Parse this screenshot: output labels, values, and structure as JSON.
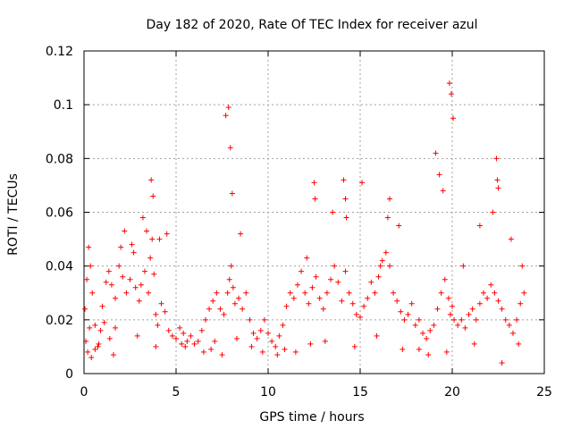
{
  "chart_data": {
    "type": "scatter",
    "title": "Day 182 of 2020, Rate Of TEC Index for receiver azul",
    "xlabel": "GPS time / hours",
    "ylabel": "ROTI / TECUs",
    "xlim": [
      0,
      25
    ],
    "ylim": [
      0,
      0.12
    ],
    "x_ticks": [
      0,
      5,
      10,
      15,
      20,
      25
    ],
    "x_tick_labels": [
      "0",
      "5",
      "10",
      "15",
      "20",
      "25"
    ],
    "y_ticks": [
      0,
      0.02,
      0.04,
      0.06,
      0.08,
      0.1,
      0.12
    ],
    "y_tick_labels": [
      "0",
      "0.02",
      "0.04",
      "0.06",
      "0.08",
      "0.1",
      "0.12"
    ],
    "grid": true,
    "marker": "+",
    "color": "#ff0000",
    "series": [
      {
        "x": [
          0.05,
          0.15,
          0.25,
          0.35,
          0.45,
          0.6,
          0.75,
          0.9,
          1.0,
          1.2,
          1.35,
          1.5,
          1.7,
          1.9,
          2.0,
          2.1,
          2.3,
          2.5,
          2.7,
          2.8,
          3.0,
          3.1,
          3.3,
          3.5,
          3.6,
          3.7,
          3.8,
          3.9,
          4.0,
          4.2,
          4.4,
          4.6,
          4.8,
          5.0,
          5.2,
          5.4,
          5.6,
          5.8,
          6.0,
          6.2,
          6.4,
          6.6,
          6.8,
          7.0,
          7.2,
          7.4,
          7.6,
          7.8,
          7.9,
          8.0,
          8.1,
          8.2,
          8.4,
          8.6,
          8.8,
          9.0,
          9.2,
          9.4,
          9.6,
          9.8,
          10.0,
          10.2,
          10.4,
          10.6,
          10.8,
          11.0,
          11.2,
          11.4,
          11.6,
          11.8,
          12.0,
          12.2,
          12.4,
          12.6,
          12.8,
          13.0,
          13.2,
          13.4,
          13.6,
          13.8,
          14.0,
          14.2,
          14.4,
          14.6,
          14.8,
          15.0,
          15.2,
          15.4,
          15.6,
          15.8,
          16.0,
          16.2,
          16.4,
          16.6,
          16.8,
          17.0,
          17.2,
          17.4,
          17.6,
          17.8,
          18.0,
          18.2,
          18.4,
          18.6,
          18.8,
          19.0,
          19.2,
          19.4,
          19.6,
          19.8,
          19.9,
          20.0,
          20.1,
          20.3,
          20.5,
          20.7,
          20.9,
          21.1,
          21.3,
          21.5,
          21.7,
          21.9,
          22.1,
          22.3,
          22.5,
          22.7,
          22.9,
          23.1,
          23.3,
          23.5,
          23.7,
          23.9,
          0.1,
          0.2,
          0.4,
          0.6,
          0.8,
          1.1,
          1.4,
          1.7,
          2.2,
          2.6,
          3.2,
          3.4,
          3.65,
          3.75,
          4.1,
          4.5,
          5.5,
          6.5,
          7.1,
          7.5,
          7.7,
          7.85,
          7.95,
          8.05,
          8.5,
          9.1,
          10.5,
          11.5,
          12.1,
          12.5,
          12.55,
          13.5,
          14.1,
          14.2,
          14.25,
          15.1,
          16.1,
          16.5,
          16.6,
          17.1,
          18.2,
          19.1,
          19.3,
          19.5,
          19.85,
          19.95,
          20.05,
          20.6,
          21.5,
          22.2,
          22.4,
          22.45,
          22.5,
          23.2,
          23.8,
          0.3,
          1.6,
          2.9,
          3.9,
          5.3,
          6.9,
          8.3,
          9.7,
          10.9,
          12.3,
          13.1,
          14.7,
          15.9,
          17.3,
          18.7,
          19.7,
          21.2,
          22.7,
          23.6
        ],
        "y": [
          0.024,
          0.035,
          0.047,
          0.04,
          0.03,
          0.018,
          0.01,
          0.016,
          0.025,
          0.034,
          0.038,
          0.033,
          0.028,
          0.04,
          0.047,
          0.036,
          0.03,
          0.035,
          0.045,
          0.032,
          0.027,
          0.033,
          0.038,
          0.03,
          0.043,
          0.05,
          0.037,
          0.022,
          0.018,
          0.026,
          0.023,
          0.016,
          0.014,
          0.013,
          0.017,
          0.015,
          0.012,
          0.014,
          0.011,
          0.012,
          0.016,
          0.02,
          0.024,
          0.027,
          0.03,
          0.024,
          0.022,
          0.03,
          0.035,
          0.04,
          0.032,
          0.026,
          0.028,
          0.024,
          0.03,
          0.02,
          0.015,
          0.013,
          0.016,
          0.02,
          0.015,
          0.012,
          0.01,
          0.014,
          0.018,
          0.025,
          0.03,
          0.028,
          0.033,
          0.038,
          0.03,
          0.026,
          0.032,
          0.036,
          0.028,
          0.024,
          0.03,
          0.035,
          0.04,
          0.034,
          0.027,
          0.038,
          0.03,
          0.026,
          0.022,
          0.021,
          0.025,
          0.028,
          0.034,
          0.03,
          0.036,
          0.042,
          0.045,
          0.04,
          0.03,
          0.027,
          0.023,
          0.02,
          0.022,
          0.026,
          0.018,
          0.02,
          0.015,
          0.013,
          0.016,
          0.018,
          0.024,
          0.03,
          0.035,
          0.028,
          0.022,
          0.025,
          0.02,
          0.018,
          0.02,
          0.017,
          0.022,
          0.024,
          0.02,
          0.026,
          0.03,
          0.028,
          0.033,
          0.03,
          0.027,
          0.024,
          0.02,
          0.018,
          0.015,
          0.02,
          0.026,
          0.03,
          0.012,
          0.008,
          0.006,
          0.009,
          0.011,
          0.019,
          0.013,
          0.017,
          0.053,
          0.048,
          0.058,
          0.053,
          0.072,
          0.066,
          0.05,
          0.052,
          0.01,
          0.008,
          0.012,
          0.007,
          0.096,
          0.099,
          0.084,
          0.067,
          0.052,
          0.01,
          0.007,
          0.008,
          0.043,
          0.071,
          0.065,
          0.06,
          0.072,
          0.065,
          0.058,
          0.071,
          0.04,
          0.058,
          0.065,
          0.055,
          0.009,
          0.082,
          0.074,
          0.068,
          0.108,
          0.104,
          0.095,
          0.04,
          0.055,
          0.06,
          0.08,
          0.072,
          0.069,
          0.05,
          0.04,
          0.017,
          0.007,
          0.014,
          0.01,
          0.011,
          0.009,
          0.013,
          0.008,
          0.009,
          0.011,
          0.012,
          0.01,
          0.014,
          0.009,
          0.007,
          0.008,
          0.011,
          0.004,
          0.011
        ]
      }
    ]
  }
}
